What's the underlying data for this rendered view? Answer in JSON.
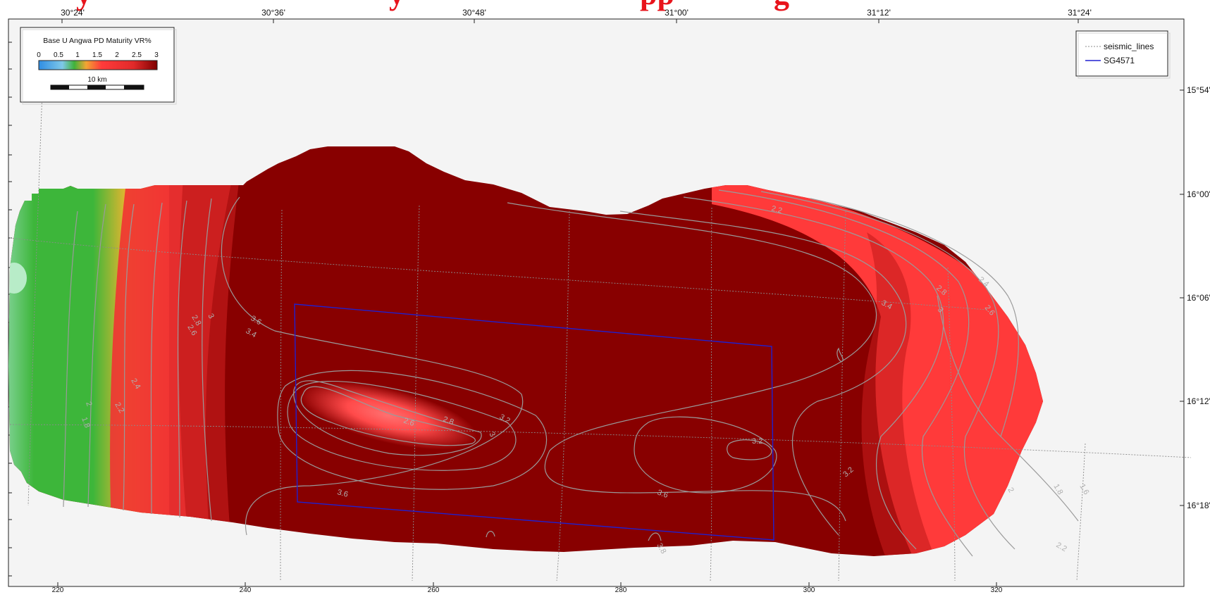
{
  "title_fragments": [
    "y",
    "y",
    "pp",
    "g"
  ],
  "top_axis": {
    "labels": [
      "30°24'",
      "30°36'",
      "30°48'",
      "31°00'",
      "31°12'",
      "31°24'"
    ]
  },
  "right_axis": {
    "labels": [
      "15°54'",
      "16°00'",
      "16°06'",
      "16°12'",
      "16°18'"
    ]
  },
  "bottom_axis": {
    "labels": [
      "220",
      "240",
      "260",
      "280",
      "300",
      "320"
    ]
  },
  "colorbar": {
    "title": "Base U Angwa PD Maturity  VR%",
    "tick_labels": [
      "0",
      "0.5",
      "1",
      "1.5",
      "2",
      "2.5",
      "3"
    ],
    "stops": [
      {
        "value": 0.0,
        "color": "#2f8de4"
      },
      {
        "value": 0.6,
        "color": "#7fc8e8"
      },
      {
        "value": 0.9,
        "color": "#3fb23a"
      },
      {
        "value": 1.2,
        "color": "#f2a533"
      },
      {
        "value": 1.6,
        "color": "#ff3b3b"
      },
      {
        "value": 2.4,
        "color": "#e12a2a"
      },
      {
        "value": 3.0,
        "color": "#7f0000"
      }
    ],
    "scale_label": "10 km"
  },
  "legend": {
    "items": [
      {
        "label": "seismic_lines",
        "style": "dotted",
        "color": "#8c8c8c"
      },
      {
        "label": "SG4571",
        "style": "solid",
        "color": "#2020d0"
      }
    ]
  },
  "contour_labels": [
    "2.8",
    "3",
    "2.6",
    "3.6",
    "3.4",
    "2.4",
    "2.2",
    "2",
    "1.8",
    "2.6",
    "2.8",
    "3.2",
    "3",
    "3.6",
    "3.6",
    "3.2",
    "3.2",
    "3.8",
    "3.4",
    "3",
    "2.8",
    "2.6",
    "2.4",
    "2.2",
    "1.8",
    "2",
    "1.6",
    "2.2"
  ],
  "colors": {
    "dark_red": "#880000",
    "red": "#ff3a3a",
    "green": "#3db63a",
    "background": "#f4f4f4",
    "area_outline": "#2020d0"
  }
}
